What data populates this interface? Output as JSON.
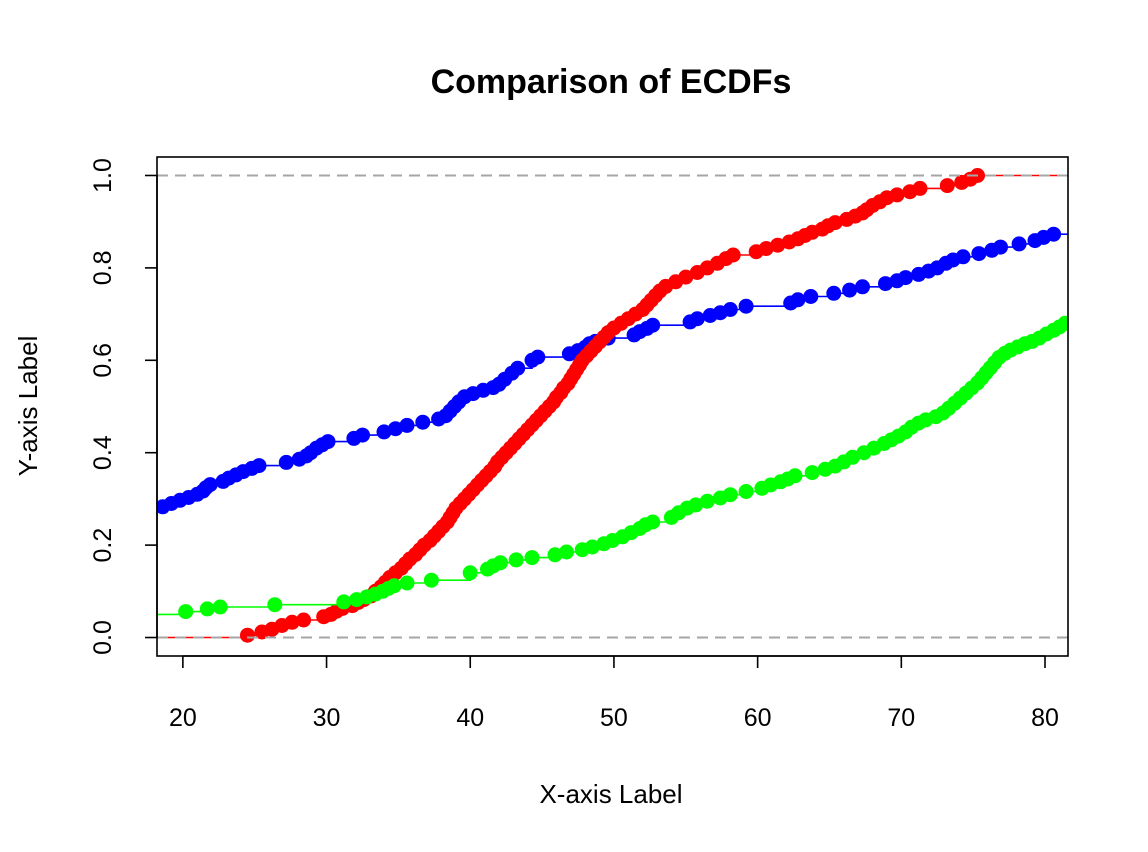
{
  "chart_data": {
    "type": "line",
    "title": "Comparison of ECDFs",
    "xlabel": "X-axis Label",
    "ylabel": "Y-axis Label",
    "xlim": [
      18.2,
      81.6
    ],
    "ylim": [
      -0.04,
      1.04
    ],
    "x_ticks": [
      "20",
      "30",
      "40",
      "50",
      "60",
      "70",
      "80"
    ],
    "y_ticks": [
      "0.0",
      "0.2",
      "0.4",
      "0.6",
      "0.8",
      "1.0"
    ],
    "reference_lines": [
      0,
      1
    ],
    "reference_line_color": "#a6a6a6",
    "grid": false,
    "legend": "none",
    "series": [
      {
        "color": "#0000ff",
        "left_value": 0.283,
        "right_value": 0.873,
        "points": [
          [
            18.6,
            0.283
          ],
          [
            19.2,
            0.29
          ],
          [
            19.8,
            0.297
          ],
          [
            20.4,
            0.303
          ],
          [
            21.0,
            0.31
          ],
          [
            21.4,
            0.317
          ],
          [
            21.6,
            0.324
          ],
          [
            21.9,
            0.331
          ],
          [
            22.8,
            0.338
          ],
          [
            23.2,
            0.345
          ],
          [
            23.7,
            0.352
          ],
          [
            24.2,
            0.359
          ],
          [
            24.8,
            0.366
          ],
          [
            25.3,
            0.372
          ],
          [
            27.2,
            0.379
          ],
          [
            28.1,
            0.386
          ],
          [
            28.6,
            0.393
          ],
          [
            28.9,
            0.4
          ],
          [
            29.3,
            0.41
          ],
          [
            29.7,
            0.417
          ],
          [
            30.1,
            0.424
          ],
          [
            31.9,
            0.431
          ],
          [
            32.5,
            0.438
          ],
          [
            34.0,
            0.445
          ],
          [
            34.8,
            0.452
          ],
          [
            35.6,
            0.459
          ],
          [
            36.7,
            0.466
          ],
          [
            37.8,
            0.473
          ],
          [
            38.3,
            0.48
          ],
          [
            38.6,
            0.49
          ],
          [
            38.9,
            0.5
          ],
          [
            39.2,
            0.51
          ],
          [
            39.6,
            0.521
          ],
          [
            40.2,
            0.528
          ],
          [
            40.9,
            0.535
          ],
          [
            41.6,
            0.541
          ],
          [
            42.0,
            0.548
          ],
          [
            42.4,
            0.559
          ],
          [
            42.9,
            0.572
          ],
          [
            43.3,
            0.583
          ],
          [
            44.3,
            0.6
          ],
          [
            44.7,
            0.607
          ],
          [
            46.9,
            0.614
          ],
          [
            47.5,
            0.621
          ],
          [
            48.0,
            0.628
          ],
          [
            48.3,
            0.636
          ],
          [
            48.7,
            0.641
          ],
          [
            49.6,
            0.648
          ],
          [
            51.4,
            0.655
          ],
          [
            51.8,
            0.662
          ],
          [
            52.3,
            0.669
          ],
          [
            52.7,
            0.676
          ],
          [
            55.3,
            0.683
          ],
          [
            55.8,
            0.69
          ],
          [
            56.7,
            0.697
          ],
          [
            57.4,
            0.703
          ],
          [
            58.1,
            0.71
          ],
          [
            59.2,
            0.717
          ],
          [
            62.3,
            0.724
          ],
          [
            62.8,
            0.731
          ],
          [
            63.7,
            0.738
          ],
          [
            65.3,
            0.745
          ],
          [
            66.4,
            0.752
          ],
          [
            67.3,
            0.759
          ],
          [
            68.9,
            0.766
          ],
          [
            69.7,
            0.772
          ],
          [
            70.3,
            0.779
          ],
          [
            71.2,
            0.786
          ],
          [
            71.9,
            0.793
          ],
          [
            72.5,
            0.8
          ],
          [
            73.1,
            0.81
          ],
          [
            73.6,
            0.817
          ],
          [
            74.3,
            0.824
          ],
          [
            75.4,
            0.831
          ],
          [
            76.3,
            0.838
          ],
          [
            76.9,
            0.845
          ],
          [
            78.2,
            0.852
          ],
          [
            79.3,
            0.859
          ],
          [
            79.9,
            0.866
          ],
          [
            80.6,
            0.873
          ]
        ]
      },
      {
        "color": "#ff0000",
        "left_value": 0.0,
        "right_value": 1.0,
        "points": [
          [
            24.5,
            0.005
          ],
          [
            25.5,
            0.012
          ],
          [
            26.2,
            0.018
          ],
          [
            26.9,
            0.026
          ],
          [
            27.6,
            0.033
          ],
          [
            28.4,
            0.038
          ],
          [
            29.8,
            0.045
          ],
          [
            30.3,
            0.05
          ],
          [
            30.7,
            0.057
          ],
          [
            31.1,
            0.063
          ],
          [
            31.8,
            0.069
          ],
          [
            32.2,
            0.076
          ],
          [
            32.6,
            0.082
          ],
          [
            33.1,
            0.09
          ],
          [
            33.4,
            0.1
          ],
          [
            33.8,
            0.11
          ],
          [
            34.1,
            0.12
          ],
          [
            34.4,
            0.13
          ],
          [
            34.8,
            0.14
          ],
          [
            35.2,
            0.15
          ],
          [
            35.5,
            0.16
          ],
          [
            35.8,
            0.17
          ],
          [
            36.2,
            0.18
          ],
          [
            36.5,
            0.19
          ],
          [
            36.8,
            0.2
          ],
          [
            37.2,
            0.21
          ],
          [
            37.5,
            0.22
          ],
          [
            37.8,
            0.23
          ],
          [
            38.1,
            0.24
          ],
          [
            38.4,
            0.25
          ],
          [
            38.6,
            0.26
          ],
          [
            38.8,
            0.27
          ],
          [
            39.0,
            0.28
          ],
          [
            39.3,
            0.29
          ],
          [
            39.6,
            0.3
          ],
          [
            39.9,
            0.31
          ],
          [
            40.2,
            0.32
          ],
          [
            40.5,
            0.33
          ],
          [
            40.8,
            0.34
          ],
          [
            41.1,
            0.35
          ],
          [
            41.4,
            0.36
          ],
          [
            41.7,
            0.37
          ],
          [
            41.9,
            0.38
          ],
          [
            42.2,
            0.39
          ],
          [
            42.5,
            0.4
          ],
          [
            42.8,
            0.41
          ],
          [
            43.1,
            0.42
          ],
          [
            43.4,
            0.43
          ],
          [
            43.7,
            0.44
          ],
          [
            44.0,
            0.45
          ],
          [
            44.3,
            0.46
          ],
          [
            44.6,
            0.47
          ],
          [
            44.9,
            0.48
          ],
          [
            45.2,
            0.49
          ],
          [
            45.5,
            0.5
          ],
          [
            45.8,
            0.51
          ],
          [
            46.0,
            0.52
          ],
          [
            46.3,
            0.53
          ],
          [
            46.5,
            0.54
          ],
          [
            46.8,
            0.55
          ],
          [
            47.0,
            0.56
          ],
          [
            47.2,
            0.57
          ],
          [
            47.4,
            0.58
          ],
          [
            47.6,
            0.59
          ],
          [
            47.8,
            0.6
          ],
          [
            48.1,
            0.61
          ],
          [
            48.4,
            0.62
          ],
          [
            48.7,
            0.63
          ],
          [
            49.0,
            0.64
          ],
          [
            49.3,
            0.65
          ],
          [
            49.6,
            0.66
          ],
          [
            50.0,
            0.67
          ],
          [
            50.5,
            0.68
          ],
          [
            51.0,
            0.69
          ],
          [
            51.5,
            0.7
          ],
          [
            52.0,
            0.71
          ],
          [
            52.3,
            0.72
          ],
          [
            52.6,
            0.73
          ],
          [
            52.9,
            0.74
          ],
          [
            53.2,
            0.75
          ],
          [
            53.6,
            0.76
          ],
          [
            54.3,
            0.77
          ],
          [
            55.0,
            0.78
          ],
          [
            55.8,
            0.79
          ],
          [
            56.5,
            0.8
          ],
          [
            57.2,
            0.81
          ],
          [
            57.8,
            0.82
          ],
          [
            58.3,
            0.828
          ],
          [
            59.9,
            0.835
          ],
          [
            60.6,
            0.842
          ],
          [
            61.4,
            0.849
          ],
          [
            62.2,
            0.856
          ],
          [
            62.8,
            0.863
          ],
          [
            63.3,
            0.87
          ],
          [
            63.8,
            0.877
          ],
          [
            64.5,
            0.884
          ],
          [
            64.9,
            0.891
          ],
          [
            65.4,
            0.898
          ],
          [
            66.2,
            0.905
          ],
          [
            66.8,
            0.912
          ],
          [
            67.3,
            0.919
          ],
          [
            67.6,
            0.926
          ],
          [
            68.0,
            0.935
          ],
          [
            68.5,
            0.943
          ],
          [
            69.0,
            0.952
          ],
          [
            69.7,
            0.958
          ],
          [
            70.6,
            0.965
          ],
          [
            71.3,
            0.972
          ],
          [
            73.2,
            0.978
          ],
          [
            74.2,
            0.985
          ],
          [
            74.8,
            0.992
          ],
          [
            75.3,
            1.0
          ]
        ]
      },
      {
        "color": "#00ff00",
        "left_value": 0.05,
        "right_value": 0.68,
        "points": [
          [
            20.2,
            0.056
          ],
          [
            21.7,
            0.062
          ],
          [
            22.6,
            0.066
          ],
          [
            26.4,
            0.071
          ],
          [
            31.2,
            0.077
          ],
          [
            32.1,
            0.082
          ],
          [
            32.8,
            0.088
          ],
          [
            33.4,
            0.094
          ],
          [
            33.9,
            0.1
          ],
          [
            34.3,
            0.106
          ],
          [
            34.7,
            0.112
          ],
          [
            35.6,
            0.118
          ],
          [
            37.3,
            0.124
          ],
          [
            40.0,
            0.14
          ],
          [
            41.2,
            0.148
          ],
          [
            41.6,
            0.155
          ],
          [
            42.1,
            0.162
          ],
          [
            43.2,
            0.168
          ],
          [
            44.3,
            0.173
          ],
          [
            45.9,
            0.179
          ],
          [
            46.7,
            0.185
          ],
          [
            47.8,
            0.19
          ],
          [
            48.5,
            0.196
          ],
          [
            49.3,
            0.203
          ],
          [
            49.9,
            0.21
          ],
          [
            50.6,
            0.218
          ],
          [
            51.2,
            0.227
          ],
          [
            51.8,
            0.236
          ],
          [
            52.2,
            0.244
          ],
          [
            52.7,
            0.25
          ],
          [
            54.0,
            0.26
          ],
          [
            54.5,
            0.27
          ],
          [
            55.1,
            0.28
          ],
          [
            55.7,
            0.287
          ],
          [
            56.5,
            0.295
          ],
          [
            57.4,
            0.302
          ],
          [
            58.1,
            0.309
          ],
          [
            59.2,
            0.316
          ],
          [
            60.3,
            0.323
          ],
          [
            60.9,
            0.33
          ],
          [
            61.6,
            0.337
          ],
          [
            62.1,
            0.343
          ],
          [
            62.6,
            0.35
          ],
          [
            63.8,
            0.357
          ],
          [
            64.7,
            0.364
          ],
          [
            65.4,
            0.371
          ],
          [
            66.0,
            0.38
          ],
          [
            66.6,
            0.39
          ],
          [
            67.4,
            0.4
          ],
          [
            68.1,
            0.41
          ],
          [
            68.8,
            0.42
          ],
          [
            69.3,
            0.428
          ],
          [
            69.8,
            0.436
          ],
          [
            70.3,
            0.445
          ],
          [
            70.7,
            0.455
          ],
          [
            71.2,
            0.464
          ],
          [
            71.7,
            0.471
          ],
          [
            72.4,
            0.478
          ],
          [
            72.9,
            0.486
          ],
          [
            73.3,
            0.496
          ],
          [
            73.7,
            0.507
          ],
          [
            74.1,
            0.518
          ],
          [
            74.5,
            0.529
          ],
          [
            74.9,
            0.54
          ],
          [
            75.3,
            0.551
          ],
          [
            75.6,
            0.562
          ],
          [
            75.9,
            0.573
          ],
          [
            76.2,
            0.584
          ],
          [
            76.5,
            0.595
          ],
          [
            76.8,
            0.606
          ],
          [
            77.2,
            0.615
          ],
          [
            77.6,
            0.622
          ],
          [
            78.1,
            0.629
          ],
          [
            78.6,
            0.636
          ],
          [
            79.1,
            0.641
          ],
          [
            79.6,
            0.648
          ],
          [
            80.1,
            0.657
          ],
          [
            80.6,
            0.665
          ],
          [
            81.0,
            0.672
          ],
          [
            81.4,
            0.68
          ]
        ]
      }
    ]
  }
}
